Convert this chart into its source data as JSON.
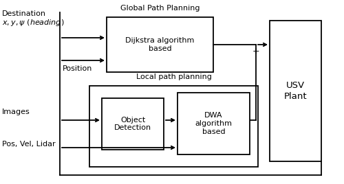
{
  "fig_width": 5.0,
  "fig_height": 2.68,
  "dpi": 100,
  "bg_color": "#ffffff",
  "title_global": "Global Path Planning",
  "title_local": "Local path planning",
  "label_dijkstra": "Dijkstra algorithm\nbased",
  "label_object": "Object\nDetection",
  "label_dwa": "DWA\nalgorithm\nbased",
  "label_usv": "USV\nPlant",
  "label_destination": "Destination",
  "label_xyz": "$x, y, \\psi$ ($heading$)",
  "label_position": "Position",
  "label_images": "Images",
  "label_posvel": "Pos, Vel, Lidar",
  "label_plus": "+"
}
